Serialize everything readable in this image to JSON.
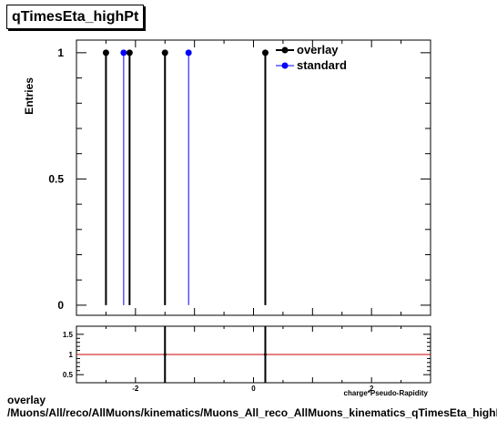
{
  "chart_data": [
    {
      "type": "scatter",
      "title": "qTimesEta_highPt",
      "ylabel": "Entries",
      "xlim": [
        -3,
        3
      ],
      "ylim": [
        -0.04,
        1.05
      ],
      "yticks": [
        0,
        0.5,
        1
      ],
      "ytick_labels": [
        "0",
        "0.5",
        "1"
      ],
      "legend_position": "top-right",
      "grid": false,
      "series": [
        {
          "name": "overlay",
          "color": "#000000",
          "x": [
            -2.5,
            -2.1,
            -1.5,
            0.2
          ],
          "y": [
            1,
            1,
            1,
            1
          ]
        },
        {
          "name": "standard",
          "color": "#0000ff",
          "x": [
            -2.2,
            -1.1
          ],
          "y": [
            1,
            1
          ]
        }
      ]
    },
    {
      "type": "line",
      "xlabel": "charge*Pseudo-Rapidity",
      "xlim": [
        -3,
        3
      ],
      "ylim": [
        0.3,
        1.7
      ],
      "xticks": [
        -2,
        0,
        2
      ],
      "xtick_labels": [
        "-2",
        "0",
        "2"
      ],
      "yticks": [
        0.5,
        1,
        1.5
      ],
      "ytick_labels": [
        "0.5",
        "1",
        "1.5"
      ],
      "reference_line": {
        "y": 1,
        "color": "#cc0000"
      },
      "ratio_markers_x": [
        -1.5,
        0.2
      ]
    }
  ],
  "footer": {
    "line1": "overlay",
    "line2": "/Muons/All/reco/AllMuons/kinematics/Muons_All_reco_AllMuons_kinematics_qTimesEta_highPt"
  }
}
